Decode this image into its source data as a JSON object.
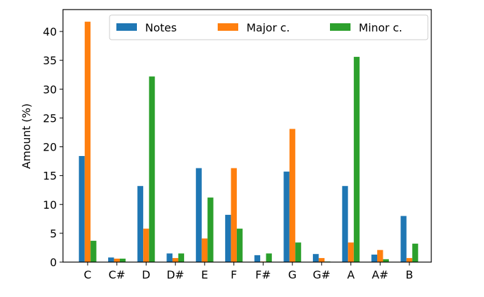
{
  "chart_data": {
    "type": "bar",
    "xlabel": "",
    "ylabel": "Amount (%)",
    "ylim": [
      0,
      43.8
    ],
    "yticks": [
      0,
      5,
      10,
      15,
      20,
      25,
      30,
      35,
      40
    ],
    "categories": [
      "C",
      "C#",
      "D",
      "D#",
      "E",
      "F",
      "F#",
      "G",
      "G#",
      "A",
      "A#",
      "B"
    ],
    "series": [
      {
        "name": "Notes",
        "color": "#1f77b4",
        "values": [
          18.4,
          0.8,
          13.2,
          1.5,
          16.3,
          8.2,
          1.2,
          15.7,
          1.4,
          13.2,
          1.3,
          8.0
        ]
      },
      {
        "name": "Major c.",
        "color": "#ff7f0e",
        "values": [
          41.7,
          0.6,
          5.8,
          0.7,
          4.1,
          16.3,
          0.1,
          23.1,
          0.7,
          3.4,
          2.1,
          0.7
        ]
      },
      {
        "name": "Minor c.",
        "color": "#2ca02c",
        "values": [
          3.7,
          0.6,
          32.2,
          1.5,
          11.2,
          5.8,
          1.5,
          3.4,
          0.1,
          35.6,
          0.5,
          3.2
        ]
      }
    ],
    "legend": "top-right",
    "grid": false
  }
}
